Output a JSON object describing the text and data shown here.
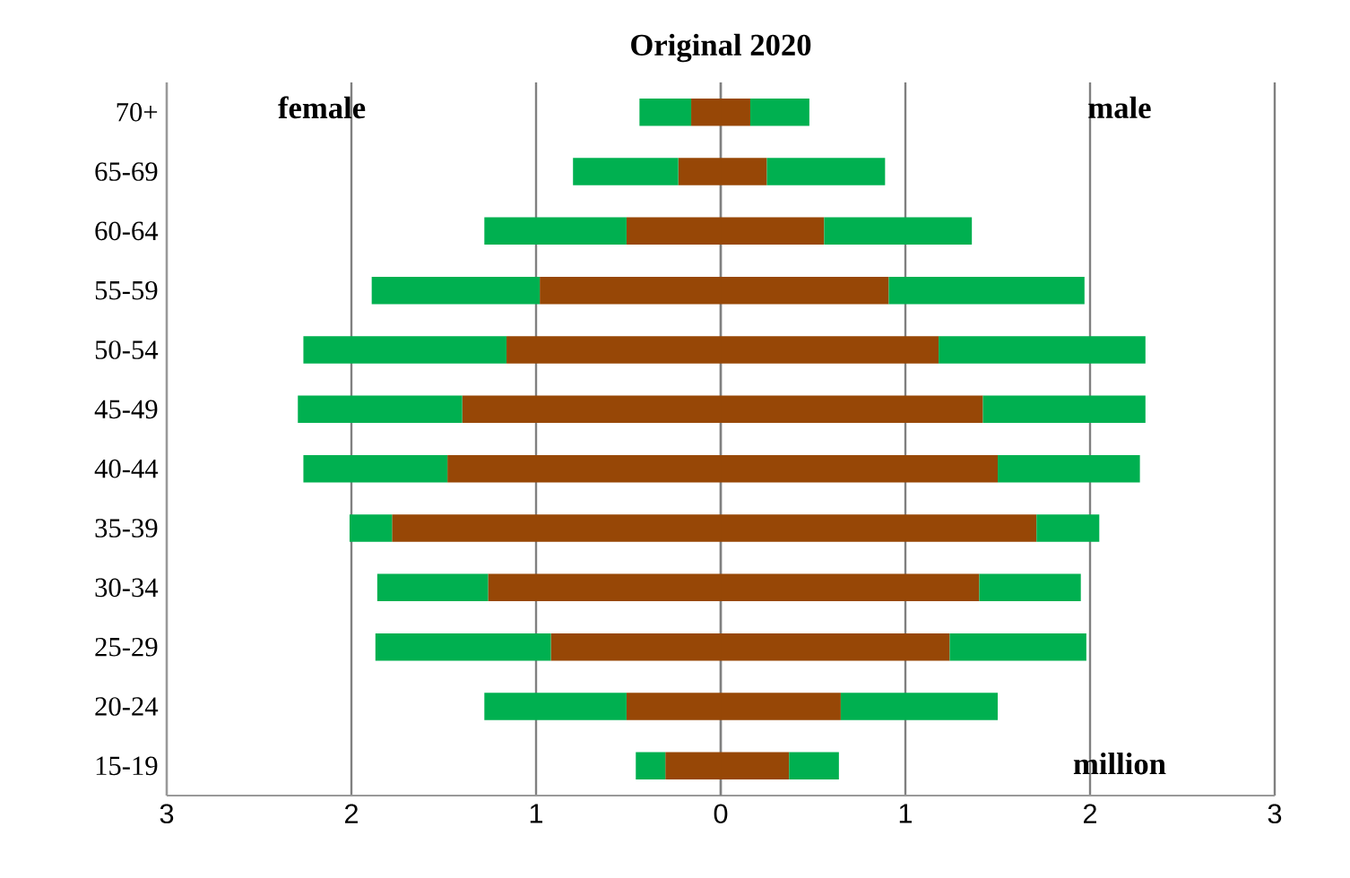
{
  "chart_data": {
    "type": "bar",
    "title": "Original 2020",
    "orientation": "horizontal",
    "stacked": true,
    "categories": [
      "70+",
      "65-69",
      "60-64",
      "55-59",
      "50-54",
      "45-49",
      "40-44",
      "35-39",
      "30-34",
      "25-29",
      "20-24",
      "15-19"
    ],
    "series": [
      {
        "color": "#974706",
        "values": [
          -0.16,
          -0.23,
          -0.51,
          -0.98,
          -1.16,
          -1.4,
          -1.48,
          -1.78,
          -1.26,
          -0.92,
          -0.51,
          -0.3
        ]
      },
      {
        "color": "#00b050",
        "values": [
          -0.28,
          -0.57,
          -0.77,
          -0.91,
          -1.1,
          -0.89,
          -0.78,
          -0.23,
          -0.6,
          -0.95,
          -0.77,
          -0.16
        ]
      },
      {
        "color": "#974706",
        "values": [
          0.16,
          0.25,
          0.56,
          0.91,
          1.18,
          1.42,
          1.5,
          1.71,
          1.4,
          1.24,
          0.65,
          0.37
        ]
      },
      {
        "color": "#00b050",
        "values": [
          0.32,
          0.64,
          0.8,
          1.06,
          1.12,
          0.88,
          0.77,
          0.34,
          0.55,
          0.74,
          0.85,
          0.27
        ]
      }
    ],
    "xlim": [
      -3,
      3
    ],
    "xticks": [
      {
        "value": -3,
        "label": "3"
      },
      {
        "value": -2,
        "label": "2"
      },
      {
        "value": -1,
        "label": "1"
      },
      0,
      1,
      {
        "value": 2,
        "label": "2"
      },
      {
        "value": 3,
        "label": "3"
      }
    ],
    "grid": "x",
    "annotations": [
      "female",
      "male",
      "million"
    ]
  }
}
